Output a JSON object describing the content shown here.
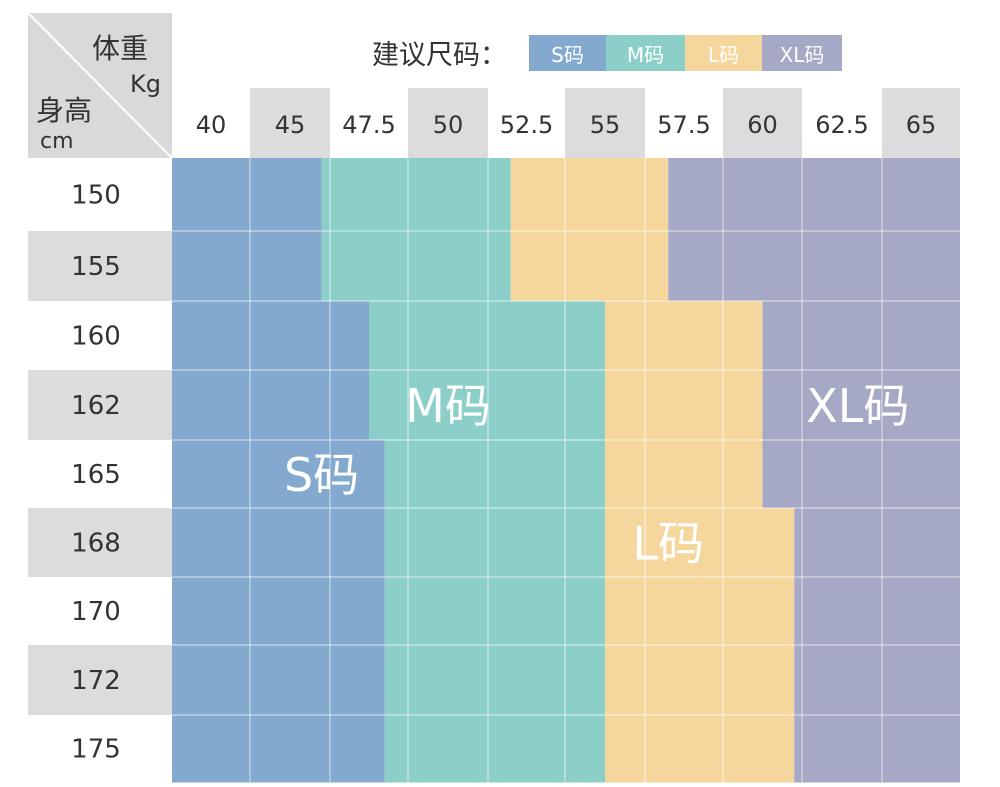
{
  "legend": {
    "title": "建议尺码：",
    "items": [
      {
        "label": "S码",
        "color": "#84a9cf"
      },
      {
        "label": "M码",
        "color": "#8ccfc9"
      },
      {
        "label": "L码",
        "color": "#f5d79e"
      },
      {
        "label": "XL码",
        "color": "#a6a9c6"
      }
    ]
  },
  "corner": {
    "weight": "体重",
    "weight_unit": "Kg",
    "height": "身高",
    "height_unit": "cm"
  },
  "chart_data": {
    "type": "heatmap",
    "x_title": "体重 Kg",
    "y_title": "身高 cm",
    "weights": [
      "40",
      "45",
      "47.5",
      "50",
      "52.5",
      "55",
      "57.5",
      "60",
      "62.5",
      "65"
    ],
    "heights": [
      "150",
      "155",
      "160",
      "162",
      "165",
      "168",
      "170",
      "172",
      "175"
    ],
    "size_colors": {
      "S": "#84a9cf",
      "M": "#8ccfc9",
      "L": "#f5d79e",
      "XL": "#a6a9c6"
    },
    "size_labels": {
      "S": "S码",
      "M": "M码",
      "L": "L码",
      "XL": "XL码"
    },
    "boundaries_kg": [
      {
        "height": "150",
        "S_max": 46,
        "M_max": 52,
        "L_max": 57
      },
      {
        "height": "155",
        "S_max": 46,
        "M_max": 52,
        "L_max": 57
      },
      {
        "height": "160",
        "S_max": 47.5,
        "M_max": 55,
        "L_max": 60
      },
      {
        "height": "162",
        "S_max": 47.5,
        "M_max": 55,
        "L_max": 60
      },
      {
        "height": "165",
        "S_max": 48,
        "M_max": 55,
        "L_max": 60
      },
      {
        "height": "168",
        "S_max": 48,
        "M_max": 55,
        "L_max": 61
      },
      {
        "height": "170",
        "S_max": 48,
        "M_max": 55,
        "L_max": 61
      },
      {
        "height": "172",
        "S_max": 48,
        "M_max": 55,
        "L_max": 61
      },
      {
        "height": "175",
        "S_max": 48,
        "M_max": 55,
        "L_max": 61
      }
    ],
    "region_labels": [
      {
        "text": "S码",
        "weight": 46,
        "height": "165"
      },
      {
        "text": "M码",
        "weight": 50,
        "height": "162"
      },
      {
        "text": "L码",
        "weight": 57,
        "height": "168"
      },
      {
        "text": "XL码",
        "weight": 63,
        "height": "162"
      }
    ]
  }
}
